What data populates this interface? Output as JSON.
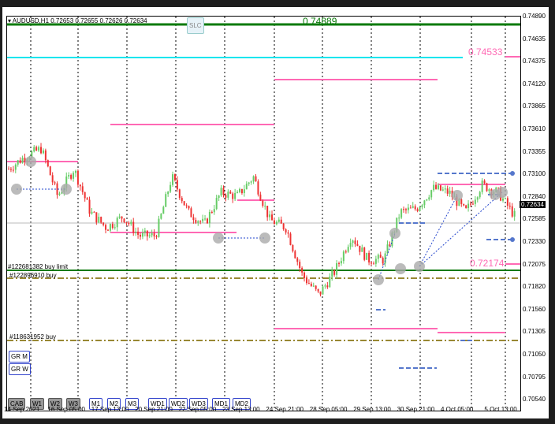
{
  "header": {
    "symbol_info": "AUDUSD,H1  0.72653 0.72655 0.72626 0.72634",
    "slc_button": "SLC"
  },
  "price_axis": {
    "labels": [
      "0.74890",
      "0.74635",
      "0.74375",
      "0.74120",
      "0.73865",
      "0.73610",
      "0.73355",
      "0.73100",
      "0.72840",
      "0.72585",
      "0.72330",
      "0.72075",
      "0.71820",
      "0.71560",
      "0.71305",
      "0.71050",
      "0.70795",
      "0.70540"
    ],
    "current_price": "0.72634"
  },
  "time_axis": {
    "labels": [
      "14 Sep 2021",
      "16 Sep 05:00",
      "17 Sep 13:00",
      "20 Sep 21:00",
      "22 Sep 05:00",
      "23 Sep 13:00",
      "24 Sep 21:00",
      "28 Sep 05:00",
      "29 Sep 13:00",
      "30 Sep 21:00",
      "4 Oct 05:00",
      "5 Oct 13:00"
    ]
  },
  "levels": {
    "top_green": "0.74889",
    "pink_upper": "0.74533",
    "pink_lower": "0.72174"
  },
  "orders": [
    "#122681382 buy limit",
    "#122896910 buy",
    "#118631952 buy"
  ],
  "side_buttons": [
    "GR M",
    "GR W"
  ],
  "bottom_buttons": [
    {
      "label": "CAB",
      "active": true
    },
    {
      "label": "W1",
      "active": true
    },
    {
      "label": "W2",
      "active": true
    },
    {
      "label": "W3",
      "active": true
    },
    {
      "label": "M1",
      "active": false
    },
    {
      "label": "M2",
      "active": false
    },
    {
      "label": "M3",
      "active": false
    },
    {
      "label": "WD1",
      "active": false
    },
    {
      "label": "WD2",
      "active": false
    },
    {
      "label": "WD3",
      "active": false
    },
    {
      "label": "MD1",
      "active": false
    },
    {
      "label": "MD2",
      "active": false
    }
  ],
  "colors": {
    "bull": "#66cc66",
    "bear": "#ee3333",
    "pink": "#ff69b4",
    "cyan": "#00e5ee",
    "green": "#0a7a0a",
    "blue": "#5577cc",
    "olive": "#998833"
  },
  "chart_data": {
    "type": "candlestick",
    "ylim": [
      0.7054,
      0.7489
    ],
    "approx_close_path": [
      0.7316,
      0.733,
      0.7339,
      0.7285,
      0.7316,
      0.7267,
      0.7249,
      0.7262,
      0.724,
      0.724,
      0.7307,
      0.7267,
      0.7253,
      0.7289,
      0.7285,
      0.7307,
      0.7258,
      0.7249,
      0.7195,
      0.7173,
      0.72,
      0.724,
      0.7213,
      0.7213,
      0.7267,
      0.7271,
      0.7294,
      0.7289,
      0.7267,
      0.7298,
      0.7289,
      0.7263
    ]
  }
}
